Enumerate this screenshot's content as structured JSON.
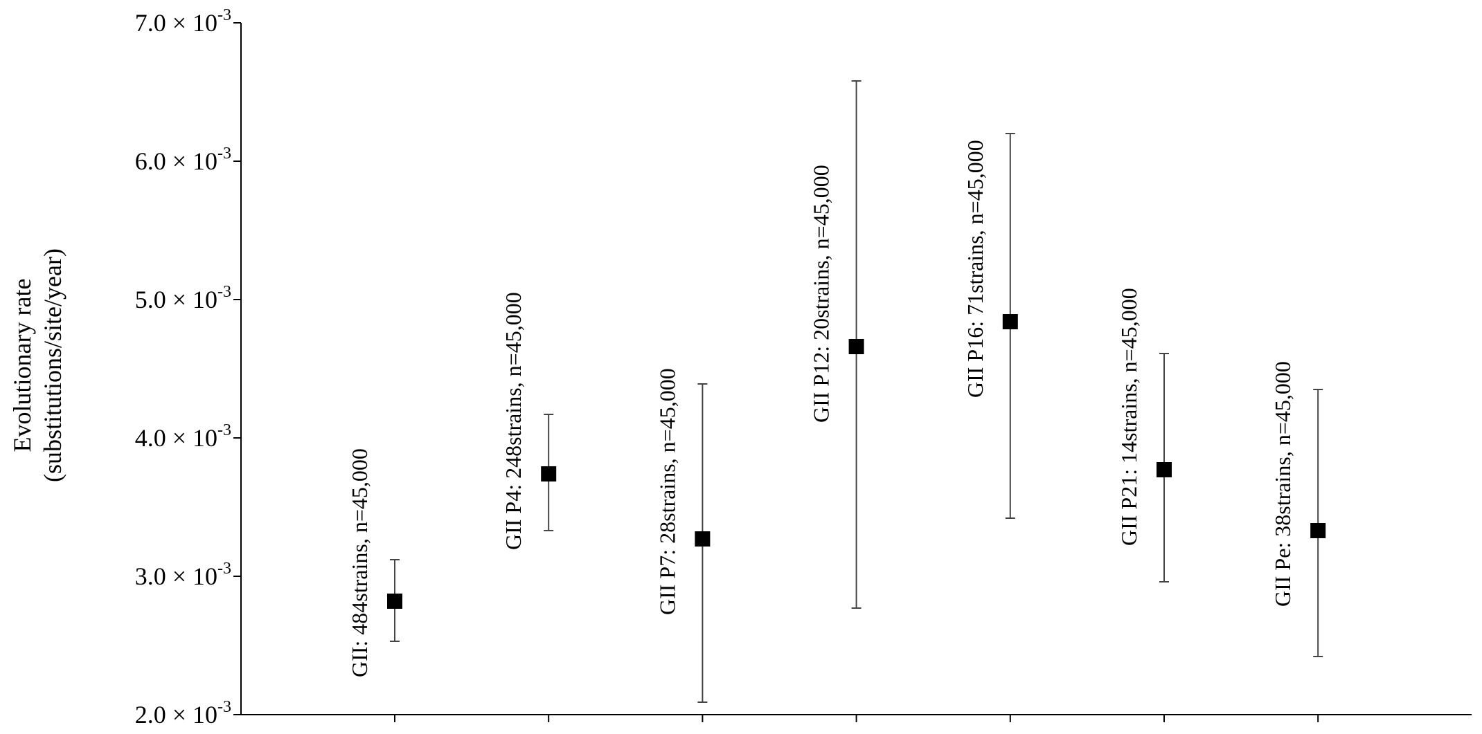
{
  "colors": {
    "axis": "#000000",
    "errorbar": "#444444",
    "marker": "#000000",
    "background": "#ffffff"
  },
  "chart_data": {
    "type": "scatter",
    "title": "",
    "xlabel": "",
    "ylabel_line1": "Evolutionary  rate",
    "ylabel_line2": "(substitutions/site/year)",
    "ylim": [
      0.002,
      0.007
    ],
    "y_ticks": [
      {
        "value": 0.002,
        "mantissa": "2.0",
        "times": "×",
        "base": "10",
        "exponent": "-3"
      },
      {
        "value": 0.003,
        "mantissa": "3.0",
        "times": "×",
        "base": "10",
        "exponent": "-3"
      },
      {
        "value": 0.004,
        "mantissa": "4.0",
        "times": "×",
        "base": "10",
        "exponent": "-3"
      },
      {
        "value": 0.005,
        "mantissa": "5.0",
        "times": "×",
        "base": "10",
        "exponent": "-3"
      },
      {
        "value": 0.006,
        "mantissa": "6.0",
        "times": "×",
        "base": "10",
        "exponent": "-3"
      },
      {
        "value": 0.007,
        "mantissa": "7.0",
        "times": "×",
        "base": "10",
        "exponent": "-3"
      }
    ],
    "grid": false,
    "marker": "square",
    "points": [
      {
        "label": "GII: 484strains, n=45,000",
        "value": 0.00282,
        "lower": 0.00253,
        "upper": 0.00312
      },
      {
        "label": "GII P4: 248strains, n=45,000",
        "value": 0.00374,
        "lower": 0.00333,
        "upper": 0.00417
      },
      {
        "label": "GII P7: 28strains, n=45,000",
        "value": 0.00327,
        "lower": 0.00209,
        "upper": 0.00439
      },
      {
        "label": "GII P12: 20strains, n=45,000",
        "value": 0.00466,
        "lower": 0.00277,
        "upper": 0.00658
      },
      {
        "label": "GII P16: 71strains, n=45,000",
        "value": 0.00484,
        "lower": 0.00342,
        "upper": 0.0062
      },
      {
        "label": "GII P21: 14strains, n=45,000",
        "value": 0.00377,
        "lower": 0.00296,
        "upper": 0.00461
      },
      {
        "label": "GII Pe: 38strains, n=45,000",
        "value": 0.00333,
        "lower": 0.00242,
        "upper": 0.00435
      }
    ]
  }
}
